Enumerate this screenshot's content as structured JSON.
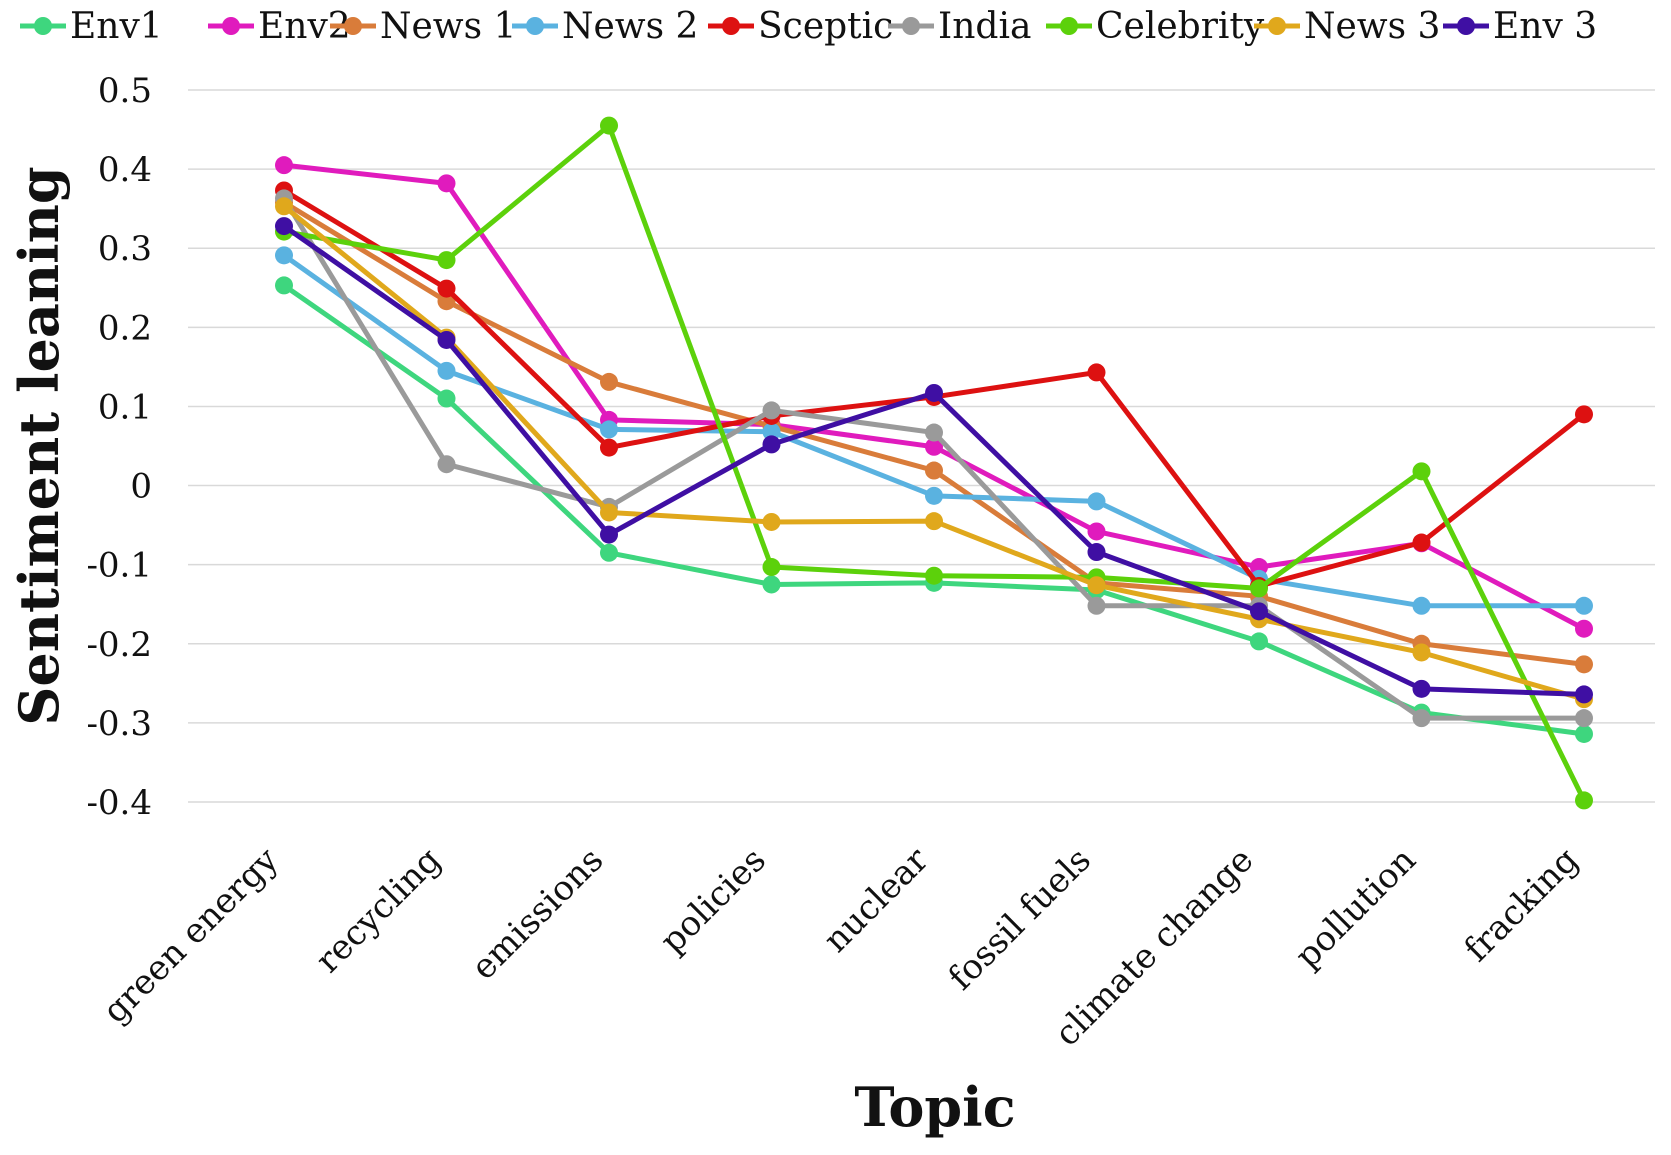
{
  "chart_data": {
    "type": "line",
    "xlabel": "Topic",
    "ylabel": "Sentiment leaning",
    "ylim": [
      -0.4,
      0.5
    ],
    "yticks": [
      "0.5",
      "0.4",
      "0.3",
      "0.2",
      "0.1",
      "0",
      "-0.1",
      "-0.2",
      "-0.3",
      "-0.4"
    ],
    "grid": true,
    "legend_position": "top",
    "categories": [
      "green energy",
      "recycling",
      "emissions",
      "policies",
      "nuclear",
      "fossil fuels",
      "climate change",
      "pollution",
      "fracking"
    ],
    "series": [
      {
        "name": "Env1",
        "color": "#3ed67e",
        "values": [
          0.253,
          0.11,
          -0.085,
          -0.125,
          -0.123,
          -0.132,
          -0.197,
          -0.287,
          -0.314
        ]
      },
      {
        "name": "Env2",
        "color": "#e01bbd",
        "values": [
          0.405,
          0.382,
          0.083,
          0.077,
          0.049,
          -0.058,
          -0.103,
          -0.073,
          -0.181
        ]
      },
      {
        "name": "News 1",
        "color": "#d97c3a",
        "values": [
          0.358,
          0.233,
          0.131,
          0.075,
          0.019,
          -0.123,
          -0.14,
          -0.2,
          -0.226
        ]
      },
      {
        "name": "News 2",
        "color": "#5ab2e0",
        "values": [
          0.291,
          0.145,
          0.071,
          0.068,
          -0.013,
          -0.02,
          -0.118,
          -0.152,
          -0.152
        ]
      },
      {
        "name": "Sceptic",
        "color": "#dd1111",
        "values": [
          0.373,
          0.249,
          0.048,
          0.088,
          0.112,
          0.143,
          -0.127,
          -0.072,
          0.09
        ]
      },
      {
        "name": "India",
        "color": "#9a9a9a",
        "values": [
          0.363,
          0.027,
          -0.027,
          0.095,
          0.067,
          -0.152,
          -0.152,
          -0.294,
          -0.294
        ]
      },
      {
        "name": "Celebrity",
        "color": "#5cd10b",
        "values": [
          0.321,
          0.285,
          0.455,
          -0.103,
          -0.114,
          -0.116,
          -0.13,
          0.018,
          -0.398
        ]
      },
      {
        "name": "News 3",
        "color": "#e0a81c",
        "values": [
          0.353,
          0.187,
          -0.034,
          -0.046,
          -0.045,
          -0.126,
          -0.169,
          -0.211,
          -0.27
        ]
      },
      {
        "name": "Env 3",
        "color": "#3f0fa3",
        "values": [
          0.328,
          0.184,
          -0.062,
          0.052,
          0.117,
          -0.084,
          -0.159,
          -0.257,
          -0.264
        ]
      }
    ]
  }
}
